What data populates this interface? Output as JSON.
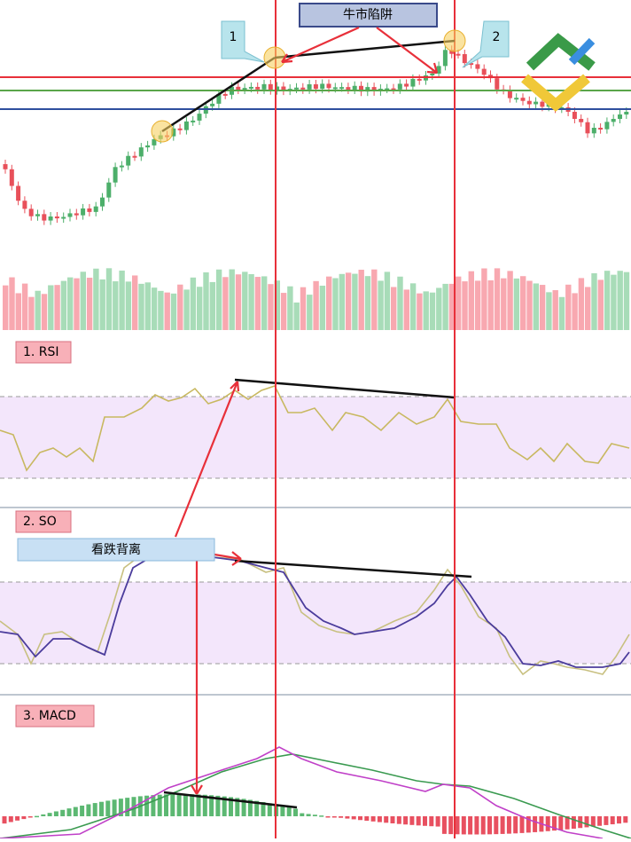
{
  "annotations": {
    "trap_title": "牛市陷阱",
    "point_1": "1",
    "point_2": "2",
    "bearish_divergence": "看跌背离"
  },
  "panels": {
    "rsi": "1. RSI",
    "so": "2. SO",
    "macd": "3. MACD"
  }
}
